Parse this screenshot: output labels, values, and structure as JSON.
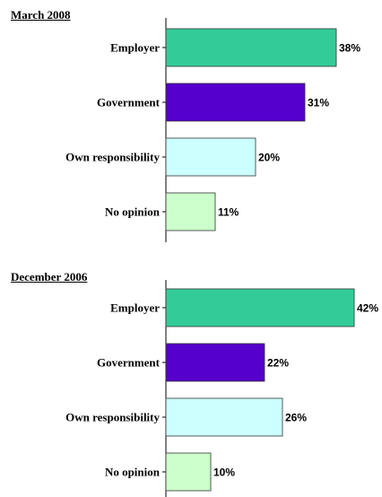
{
  "chart_data": [
    {
      "type": "bar",
      "orientation": "horizontal",
      "title": "March 2008",
      "categories": [
        "Employer",
        "Government",
        "Own responsibility",
        "No opinion"
      ],
      "values": [
        38,
        31,
        20,
        11
      ],
      "value_labels": [
        "38%",
        "31%",
        "20%",
        "11%"
      ],
      "colors": [
        "#33CC99",
        "#5500CC",
        "#CCFFFF",
        "#CCFFCC"
      ],
      "xlim": [
        0,
        42
      ],
      "grid": false
    },
    {
      "type": "bar",
      "orientation": "horizontal",
      "title": "December 2006",
      "categories": [
        "Employer",
        "Government",
        "Own responsibility",
        "No opinion"
      ],
      "values": [
        42,
        22,
        26,
        10
      ],
      "value_labels": [
        "42%",
        "22%",
        "26%",
        "10%"
      ],
      "colors": [
        "#33CC99",
        "#5500CC",
        "#CCFFFF",
        "#CCFFCC"
      ],
      "xlim": [
        0,
        42
      ],
      "grid": false
    }
  ]
}
